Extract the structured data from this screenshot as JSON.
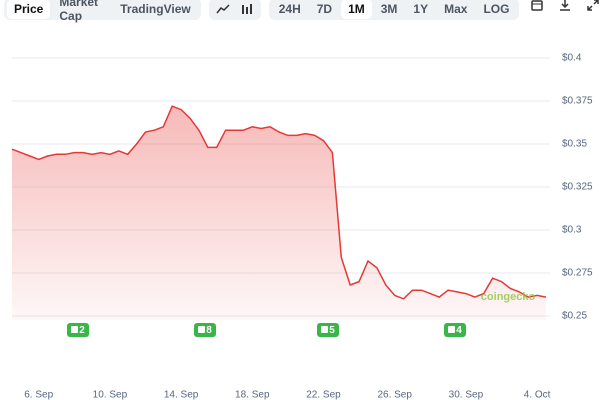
{
  "toolbar": {
    "views": [
      "Price",
      "Market Cap",
      "TradingView"
    ],
    "active_view": 0,
    "ranges": [
      "24H",
      "7D",
      "1M",
      "3M",
      "1Y",
      "Max",
      "LOG"
    ],
    "active_range": 2
  },
  "chart_data": {
    "type": "line",
    "color": "#e53935",
    "grid": true,
    "categories": [
      null,
      null,
      null,
      "6. Sep",
      null,
      null,
      null,
      null,
      null,
      null,
      null,
      "10. Sep",
      null,
      null,
      null,
      null,
      null,
      null,
      null,
      "14. Sep",
      null,
      null,
      null,
      null,
      null,
      null,
      null,
      "18. Sep",
      null,
      null,
      null,
      null,
      null,
      null,
      null,
      "22. Sep",
      null,
      null,
      null,
      null,
      null,
      null,
      null,
      "26. Sep",
      null,
      null,
      null,
      null,
      null,
      null,
      null,
      "30. Sep",
      null,
      null,
      null,
      null,
      null,
      null,
      null,
      "4. Oct",
      null
    ],
    "values": [
      0.347,
      0.345,
      0.343,
      0.341,
      0.343,
      0.344,
      0.344,
      0.345,
      0.345,
      0.344,
      0.345,
      0.344,
      0.346,
      0.344,
      0.35,
      0.357,
      0.358,
      0.36,
      0.372,
      0.37,
      0.365,
      0.358,
      0.348,
      0.348,
      0.358,
      0.358,
      0.358,
      0.36,
      0.359,
      0.36,
      0.357,
      0.355,
      0.355,
      0.356,
      0.355,
      0.352,
      0.345,
      0.284,
      0.268,
      0.27,
      0.282,
      0.278,
      0.268,
      0.262,
      0.26,
      0.265,
      0.265,
      0.263,
      0.261,
      0.265,
      0.264,
      0.263,
      0.261,
      0.263,
      0.272,
      0.27,
      0.266,
      0.264,
      0.261,
      0.262,
      0.261
    ],
    "ylim": [
      0.25,
      0.4
    ],
    "yticks": [
      {
        "value": 0.25,
        "label": "$0.25"
      },
      {
        "value": 0.275,
        "label": "$0.275"
      },
      {
        "value": 0.3,
        "label": "$0.3"
      },
      {
        "value": 0.325,
        "label": "$0.325"
      },
      {
        "value": 0.35,
        "label": "$0.35"
      },
      {
        "value": 0.375,
        "label": "$0.375"
      },
      {
        "value": 0.4,
        "label": "$0.4"
      }
    ],
    "events": [
      "2",
      "8",
      "5",
      "4"
    ],
    "watermark": "coingecko"
  }
}
